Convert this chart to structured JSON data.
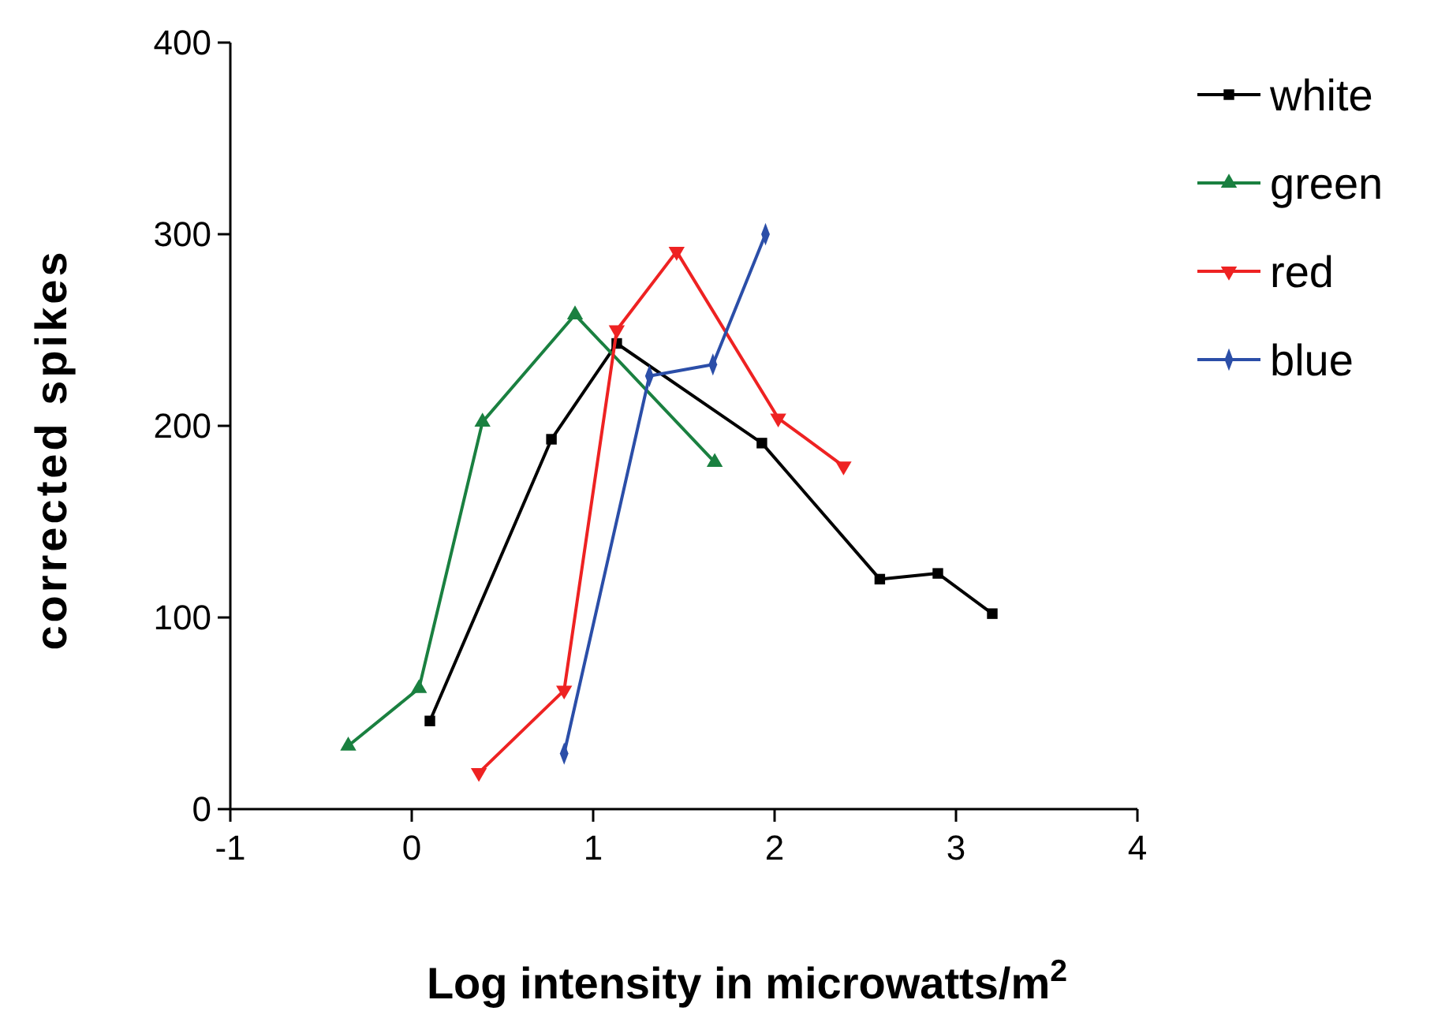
{
  "chart_data": {
    "type": "line",
    "xlabel": "Log intensity in microwatts/m$^{2}$",
    "ylabel": "corrected spikes",
    "xlim": [
      -1,
      4
    ],
    "xticks": [
      -1,
      0,
      1,
      2,
      3,
      4
    ],
    "ylim": [
      0,
      400
    ],
    "yticks": [
      0,
      100,
      200,
      300,
      400
    ],
    "grid": false,
    "legend": "right",
    "series": [
      {
        "name": "white",
        "color": "#000000",
        "marker": "square",
        "x": [
          0.1,
          0.77,
          1.13,
          1.93,
          2.58,
          2.9,
          3.2
        ],
        "values": [
          46,
          193,
          243,
          191,
          120,
          123,
          102
        ]
      },
      {
        "name": "green",
        "color": "#1a8040",
        "marker": "triangle",
        "x": [
          -0.35,
          0.04,
          0.39,
          0.9,
          1.67
        ],
        "values": [
          33,
          63,
          202,
          258,
          181
        ]
      },
      {
        "name": "red",
        "color": "#ee2222",
        "marker": "triangle-down",
        "x": [
          0.37,
          0.84,
          1.13,
          1.46,
          2.02,
          2.38
        ],
        "values": [
          19,
          62,
          250,
          291,
          204,
          179
        ]
      },
      {
        "name": "blue",
        "color": "#2b4ea8",
        "marker": "diamond",
        "x": [
          0.84,
          1.31,
          1.66,
          1.95
        ],
        "values": [
          29,
          226,
          232,
          300
        ]
      }
    ]
  }
}
